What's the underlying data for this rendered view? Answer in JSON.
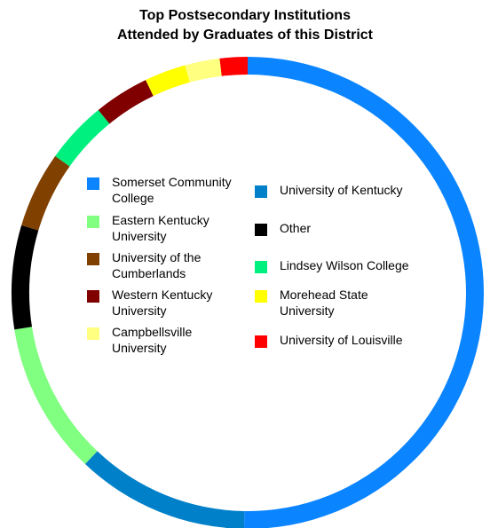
{
  "chart_data": {
    "type": "pie",
    "style": "donut",
    "title_lines": [
      "Top Postsecondary Institutions",
      "Attended by Graduates of this District"
    ],
    "legend_placement": "center",
    "slices": [
      {
        "label": "Somerset Community College",
        "value": 53.0,
        "color": "#0A84FF"
      },
      {
        "label": "University of Kentucky",
        "value": 12.5,
        "color": "#0080C8"
      },
      {
        "label": "Eastern Kentucky University",
        "value": 11.0,
        "color": "#80FF80"
      },
      {
        "label": "Other",
        "value": 7.5,
        "color": "#000000"
      },
      {
        "label": "University of the Cumberlands",
        "value": 5.5,
        "color": "#804000"
      },
      {
        "label": "Lindsey Wilson College",
        "value": 4.5,
        "color": "#00F080"
      },
      {
        "label": "Western Kentucky University",
        "value": 4.0,
        "color": "#800000"
      },
      {
        "label": "Morehead State University",
        "value": 3.0,
        "color": "#FFFF00"
      },
      {
        "label": "Campbellsville University",
        "value": 2.5,
        "color": "#FFFF80"
      },
      {
        "label": "University of Louisville",
        "value": 2.0,
        "color": "#FF0000"
      }
    ]
  },
  "legend": {
    "left": [
      {
        "label": "Somerset Community College",
        "color": "#0A84FF"
      },
      {
        "label": "Eastern Kentucky University",
        "color": "#80FF80"
      },
      {
        "label": "University of the Cumberlands",
        "color": "#804000"
      },
      {
        "label": "Western Kentucky University",
        "color": "#800000"
      },
      {
        "label": "Campbellsville University",
        "color": "#FFFF80"
      }
    ],
    "right": [
      {
        "label": "University of Kentucky",
        "color": "#0080C8"
      },
      {
        "label": "Other",
        "color": "#000000"
      },
      {
        "label": "Lindsey Wilson College",
        "color": "#00F080"
      },
      {
        "label": "Morehead State University",
        "color": "#FFFF00"
      },
      {
        "label": "University of Louisville",
        "color": "#FF0000"
      }
    ]
  }
}
